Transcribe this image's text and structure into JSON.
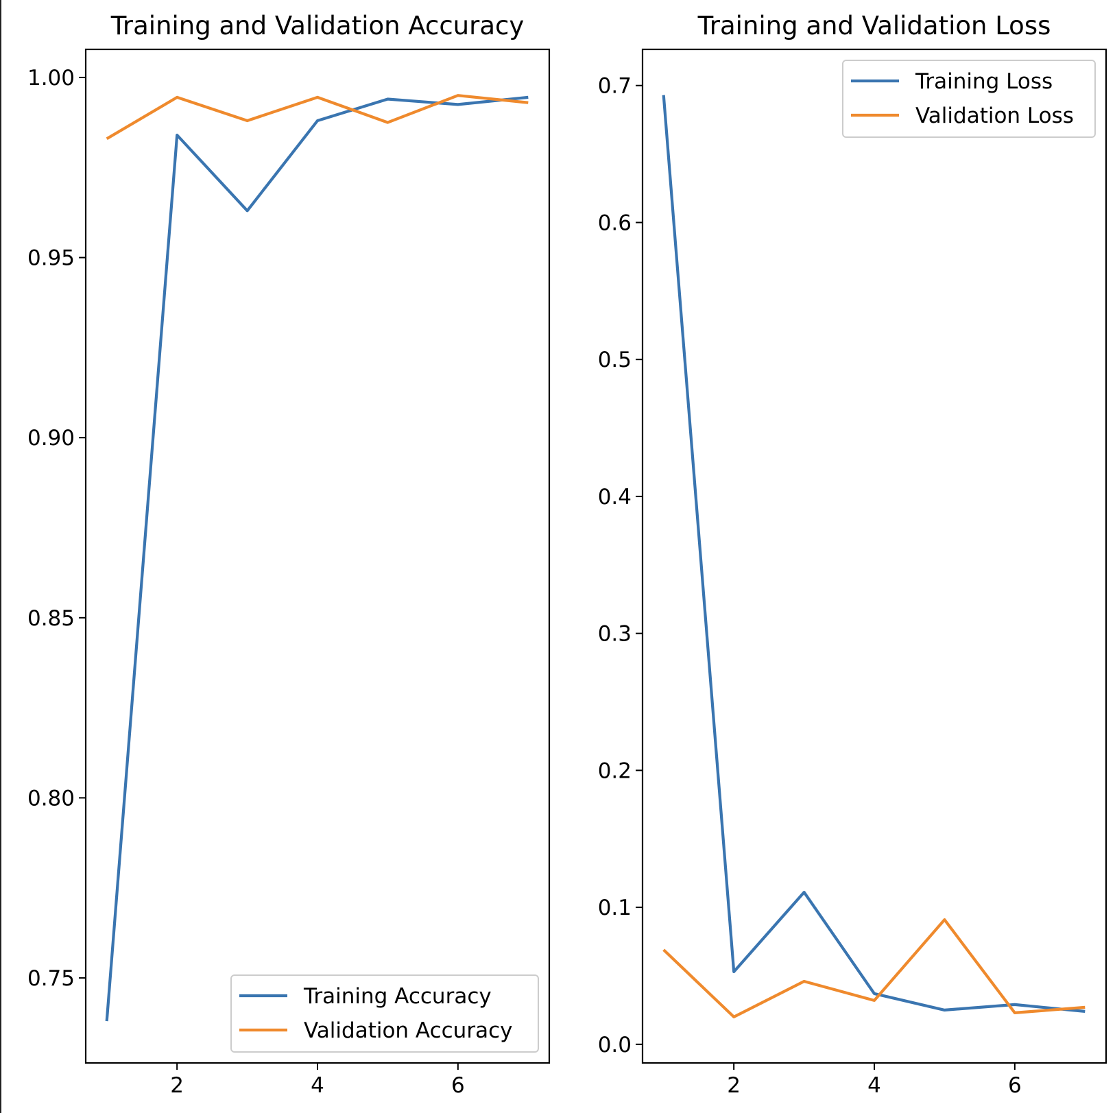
{
  "chart_data": [
    {
      "type": "line",
      "title": "Training and Validation Accuracy",
      "xlabel": "",
      "ylabel": "",
      "xlim": [
        0.7,
        7.3
      ],
      "ylim": [
        0.7264,
        1.0078
      ],
      "xticks": [
        2,
        4,
        6
      ],
      "yticks": [
        0.75,
        0.8,
        0.85,
        0.9,
        0.95,
        1.0
      ],
      "ytick_labels": [
        "0.75",
        "0.80",
        "0.85",
        "0.90",
        "0.95",
        "1.00"
      ],
      "legend_position": "lower-right",
      "x": [
        1,
        2,
        3,
        4,
        5,
        6,
        7
      ],
      "series": [
        {
          "name": "Training Accuracy",
          "color": "#3a75b0",
          "values": [
            0.738,
            0.984,
            0.963,
            0.988,
            0.994,
            0.9925,
            0.9945
          ]
        },
        {
          "name": "Validation Accuracy",
          "color": "#ef8a2d",
          "values": [
            0.983,
            0.9945,
            0.988,
            0.9945,
            0.9875,
            0.995,
            0.993
          ]
        }
      ]
    },
    {
      "type": "line",
      "title": "Training and Validation Loss",
      "xlabel": "",
      "ylabel": "",
      "xlim": [
        0.7,
        7.3
      ],
      "ylim": [
        -0.0136,
        0.7264
      ],
      "xticks": [
        2,
        4,
        6
      ],
      "yticks": [
        0.0,
        0.1,
        0.2,
        0.3,
        0.4,
        0.5,
        0.6,
        0.7
      ],
      "ytick_labels": [
        "0.0",
        "0.1",
        "0.2",
        "0.3",
        "0.4",
        "0.5",
        "0.6",
        "0.7"
      ],
      "legend_position": "upper-right",
      "x": [
        1,
        2,
        3,
        4,
        5,
        6,
        7
      ],
      "series": [
        {
          "name": "Training Loss",
          "color": "#3a75b0",
          "values": [
            0.693,
            0.053,
            0.111,
            0.037,
            0.025,
            0.029,
            0.024
          ]
        },
        {
          "name": "Validation Loss",
          "color": "#ef8a2d",
          "values": [
            0.069,
            0.02,
            0.046,
            0.032,
            0.091,
            0.023,
            0.027
          ]
        }
      ]
    }
  ]
}
